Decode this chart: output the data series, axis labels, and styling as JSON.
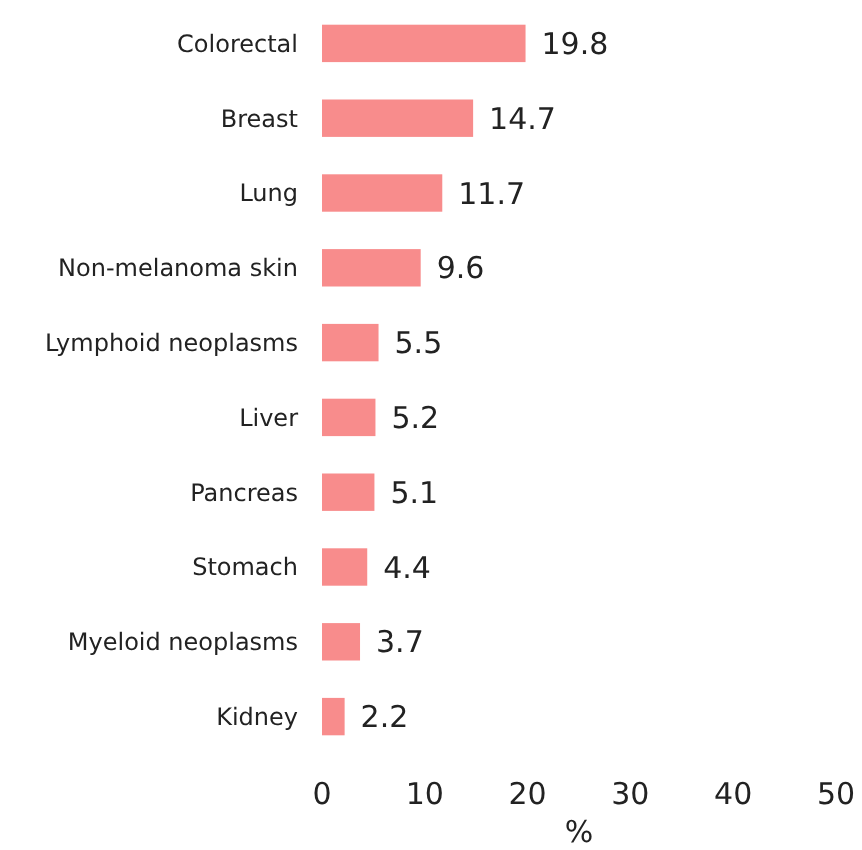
{
  "chart_data": {
    "type": "bar",
    "orientation": "horizontal",
    "xlabel": "%",
    "categories": [
      "Colorectal",
      "Breast",
      "Lung",
      "Non-melanoma skin",
      "Lymphoid neoplasms",
      "Liver",
      "Pancreas",
      "Stomach",
      "Myeloid neoplasms",
      "Kidney"
    ],
    "values": [
      19.8,
      14.7,
      11.7,
      9.6,
      5.5,
      5.2,
      5.1,
      4.4,
      3.7,
      2.2
    ],
    "color": "#f88c8c",
    "xlim": [
      0,
      50
    ],
    "xticks": [
      0,
      10,
      20,
      30,
      40,
      50
    ],
    "data_labels": true,
    "grid": false
  }
}
